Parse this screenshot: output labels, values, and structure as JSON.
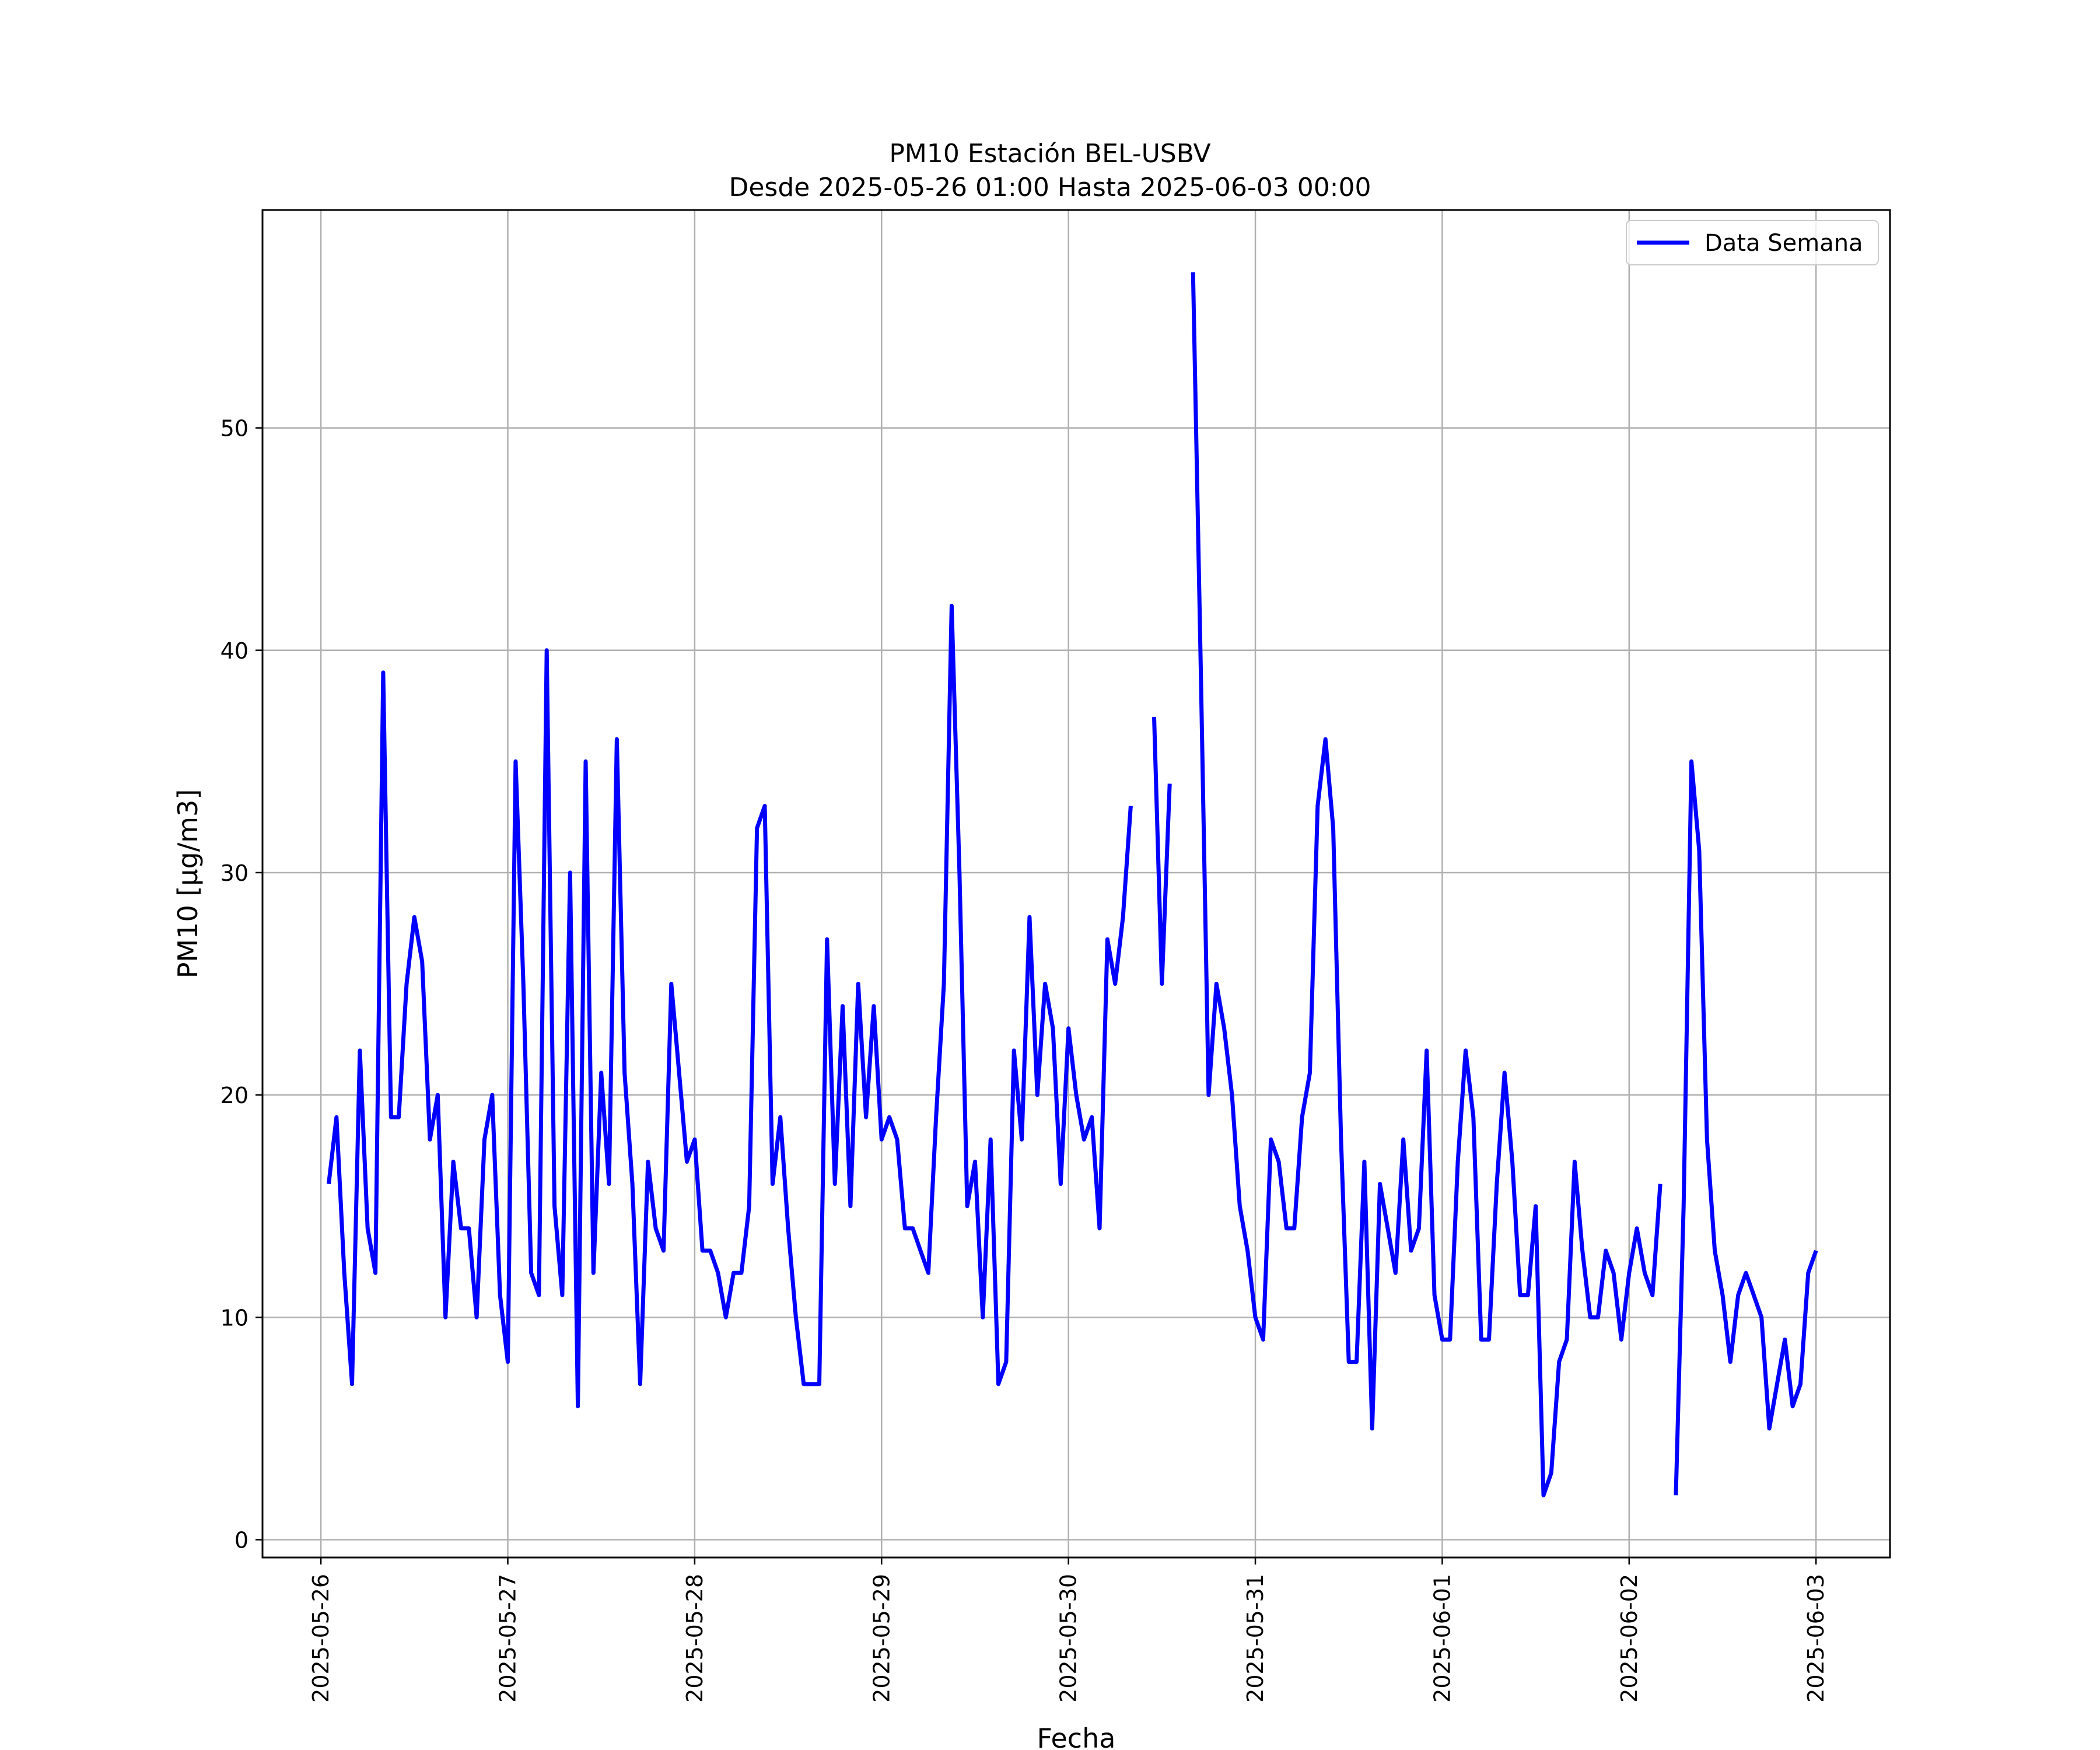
{
  "chart_data": {
    "type": "line",
    "title": "PM10 Estación BEL-USBV",
    "subtitle": "Desde 2025-05-26 01:00 Hasta 2025-06-03 00:00",
    "xlabel": "Fecha",
    "ylabel": "PM10 [μg/m3]",
    "x_start": "2025-05-26 01:00",
    "x_step_hours": 1,
    "xlim": [
      "2025-05-25 16:30",
      "2025-06-03 09:30"
    ],
    "ylim": [
      -0.8,
      59.8
    ],
    "x_ticks": [
      "2025-05-26",
      "2025-05-27",
      "2025-05-28",
      "2025-05-29",
      "2025-05-30",
      "2025-05-31",
      "2025-06-01",
      "2025-06-02",
      "2025-06-03"
    ],
    "y_ticks": [
      0,
      10,
      20,
      30,
      40,
      50
    ],
    "grid": true,
    "legend_position": "top-right",
    "series": [
      {
        "name": "Data Semana",
        "color": "#0000ff",
        "values": [
          16,
          19,
          12,
          7,
          22,
          14,
          12,
          39,
          19,
          19,
          25,
          28,
          26,
          18,
          20,
          10,
          17,
          14,
          14,
          10,
          18,
          20,
          11,
          8,
          35,
          25,
          12,
          11,
          40,
          15,
          11,
          30,
          6,
          35,
          12,
          21,
          16,
          36,
          21,
          16,
          7,
          17,
          14,
          13,
          25,
          21,
          17,
          18,
          13,
          13,
          12,
          10,
          12,
          12,
          15,
          32,
          33,
          16,
          19,
          14,
          10,
          7,
          7,
          7,
          27,
          16,
          24,
          15,
          25,
          19,
          24,
          18,
          19,
          18,
          14,
          14,
          13,
          12,
          19,
          25,
          42,
          30,
          15,
          17,
          10,
          18,
          7,
          8,
          22,
          18,
          28,
          20,
          25,
          23,
          16,
          23,
          20,
          18,
          19,
          14,
          27,
          25,
          28,
          33,
          null,
          null,
          37,
          25,
          34,
          null,
          null,
          57,
          39,
          20,
          25,
          23,
          20,
          15,
          13,
          10,
          9,
          18,
          17,
          14,
          14,
          19,
          21,
          33,
          36,
          32,
          18,
          8,
          8,
          17,
          5,
          16,
          14,
          12,
          18,
          13,
          14,
          22,
          11,
          9,
          9,
          17,
          22,
          19,
          9,
          9,
          16,
          21,
          17,
          11,
          11,
          15,
          2,
          3,
          8,
          9,
          17,
          13,
          10,
          10,
          13,
          12,
          9,
          12,
          14,
          12,
          11,
          16,
          null,
          2,
          15,
          35,
          31,
          18,
          13,
          11,
          8,
          11,
          12,
          11,
          10,
          5,
          7,
          9,
          6,
          7,
          12,
          13
        ]
      }
    ]
  }
}
